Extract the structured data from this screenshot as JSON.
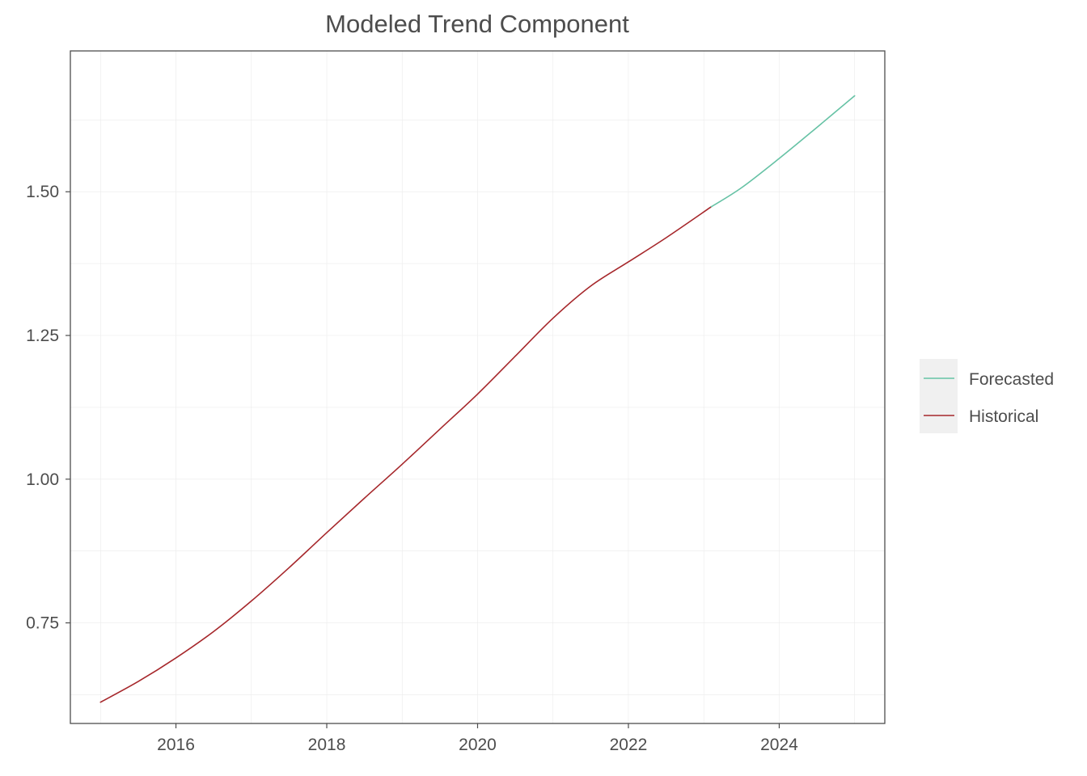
{
  "chart_data": {
    "type": "line",
    "title": "Modeled Trend Component",
    "xlabel": "",
    "ylabel": "",
    "x_ticks": [
      "2016",
      "2018",
      "2020",
      "2022",
      "2024"
    ],
    "y_ticks": [
      "0.75",
      "1.00",
      "1.25",
      "1.50"
    ],
    "xlim": [
      2014.6,
      2025.4
    ],
    "ylim": [
      0.575,
      1.745
    ],
    "grid": true,
    "legend_position": "right",
    "colors": {
      "Forecasted": "#66c2a5",
      "Historical": "#a6272b"
    },
    "series": [
      {
        "name": "Historical",
        "color": "#a6272b",
        "x": [
          2015.0,
          2015.5,
          2016.0,
          2016.5,
          2017.0,
          2017.5,
          2018.0,
          2018.5,
          2019.0,
          2019.5,
          2020.0,
          2020.5,
          2021.0,
          2021.5,
          2022.0,
          2022.5,
          2023.1
        ],
        "y": [
          0.612,
          0.648,
          0.689,
          0.735,
          0.788,
          0.846,
          0.907,
          0.967,
          1.026,
          1.087,
          1.148,
          1.214,
          1.28,
          1.336,
          1.378,
          1.42,
          1.474
        ]
      },
      {
        "name": "Forecasted",
        "color": "#66c2a5",
        "x": [
          2023.1,
          2023.5,
          2024.0,
          2024.5,
          2025.0
        ],
        "y": [
          1.474,
          1.507,
          1.558,
          1.612,
          1.667
        ]
      }
    ],
    "legend": [
      {
        "label": "Forecasted",
        "color": "#66c2a5"
      },
      {
        "label": "Historical",
        "color": "#a6272b"
      }
    ]
  }
}
